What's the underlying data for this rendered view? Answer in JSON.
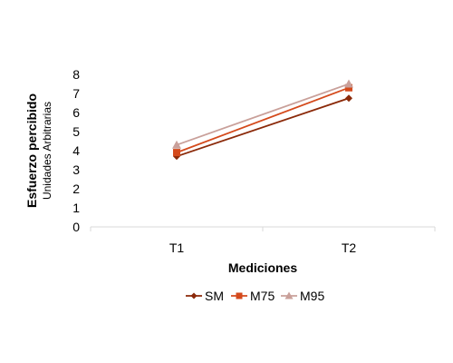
{
  "chart_data": {
    "type": "line",
    "categories": [
      "T1",
      "T2"
    ],
    "series": [
      {
        "name": "SM",
        "values": [
          3.7,
          6.75
        ],
        "color": "#8B2A0A",
        "marker": "diamond"
      },
      {
        "name": "M75",
        "values": [
          3.9,
          7.3
        ],
        "color": "#D44A1C",
        "marker": "square"
      },
      {
        "name": "M95",
        "values": [
          4.3,
          7.5
        ],
        "color": "#C9A09A",
        "marker": "triangle"
      }
    ],
    "title": "",
    "xlabel": "Mediciones",
    "ylabel": "Esfuerzo percibido",
    "ylabel_sub": "Unidades Arbitrarias",
    "ylim": [
      0,
      8
    ],
    "yticks": [
      0,
      1,
      2,
      3,
      4,
      5,
      6,
      7,
      8
    ],
    "grid": false,
    "legend": "bottom"
  }
}
